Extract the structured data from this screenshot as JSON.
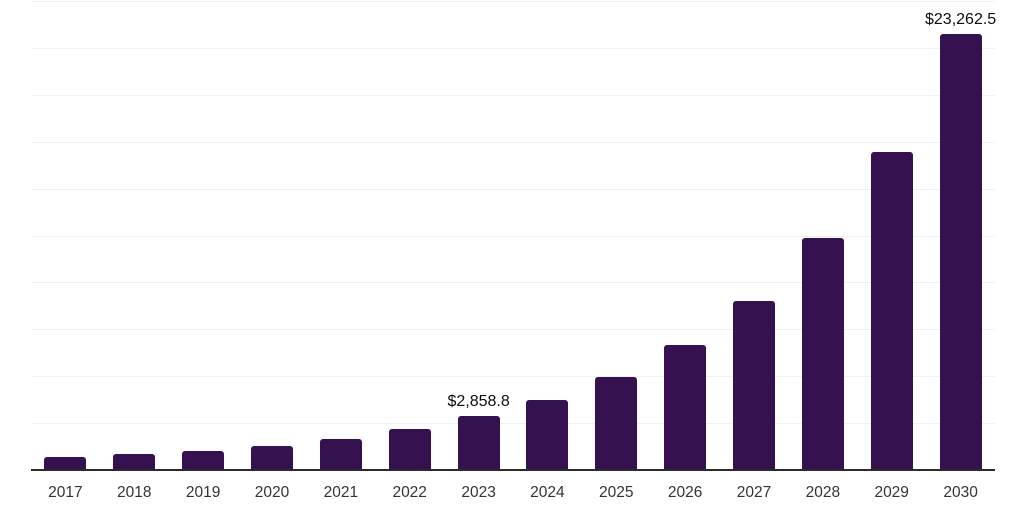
{
  "chart_data": {
    "type": "bar",
    "title": "",
    "xlabel": "",
    "ylabel": "",
    "categories": [
      "2017",
      "2018",
      "2019",
      "2020",
      "2021",
      "2022",
      "2023",
      "2024",
      "2025",
      "2026",
      "2027",
      "2028",
      "2029",
      "2030"
    ],
    "values": [
      700,
      830,
      1010,
      1270,
      1640,
      2170,
      2858.8,
      3750,
      4960,
      6690,
      9000,
      12370,
      16980,
      23262.5
    ],
    "data_labels": {
      "2023": "$2,858.8",
      "2030": "$23,262.5"
    },
    "ylim": [
      0,
      25000
    ],
    "gridline_step": 2500,
    "grid": true,
    "legend": "none",
    "y_axis_labels_visible": false,
    "bar_color": "#351150",
    "axis_line_color": "#2b2b2b",
    "gridline_color": "#f1f1f1",
    "data_label_color": "#0d0d0d",
    "tick_label_color": "#333333",
    "background_color": "#ffffff"
  }
}
